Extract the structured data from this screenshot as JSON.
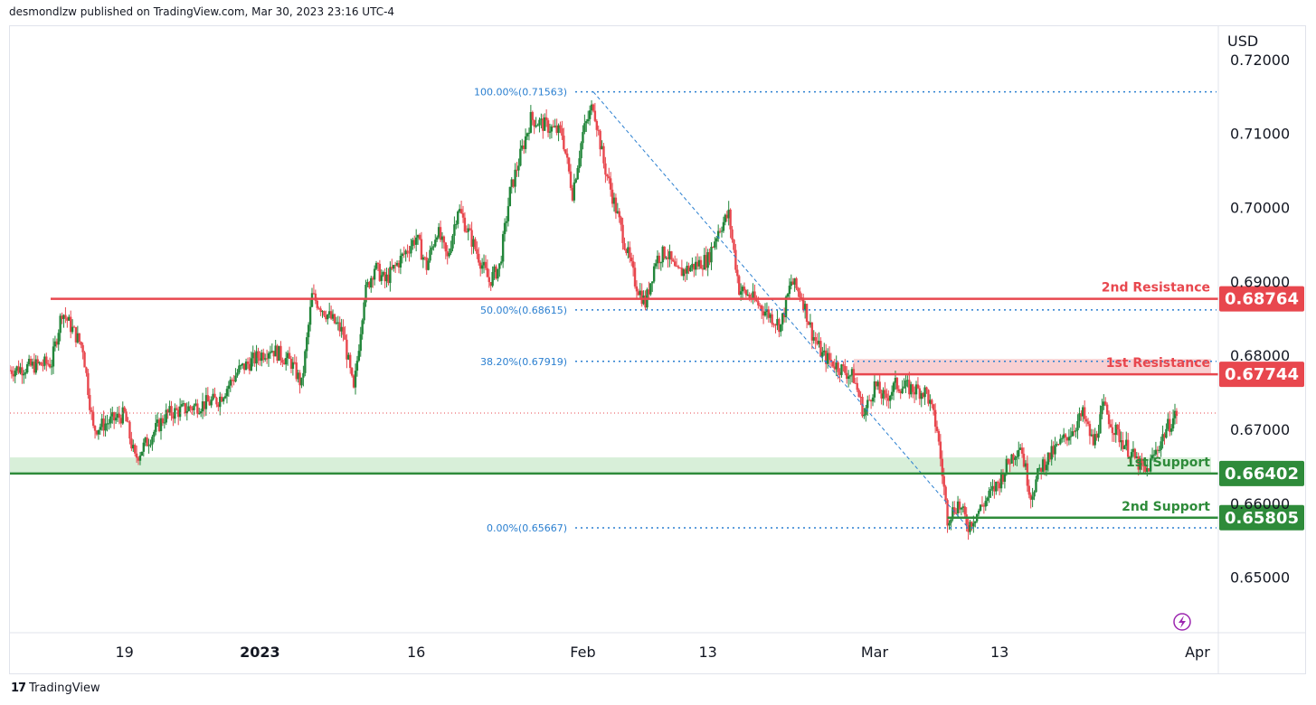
{
  "header": {
    "text": "desmondlzw published on TradingView.com, Mar 30, 2023 23:16 UTC-4"
  },
  "footer": {
    "logo": "17",
    "brand": "TradingView"
  },
  "colors": {
    "bull": "#22863a",
    "bear": "#e8474e",
    "resistance": "#e8474e",
    "support": "#2e8b3a",
    "fib": "#2a7fd0",
    "resistance_zone": "#f8d0d2",
    "support_zone": "#d8efd9",
    "last_price": "#e8474e"
  },
  "chart_data": {
    "type": "candlestick",
    "symbol_currency": "USD",
    "y_ticks": [
      0.72,
      0.71,
      0.7,
      0.69,
      0.68,
      0.67,
      0.66,
      0.65
    ],
    "y_tick_labels": [
      "0.72000",
      "0.71000",
      "0.70000",
      "0.69000",
      "0.68000",
      "0.67000",
      "0.66000",
      "0.65000"
    ],
    "ylim": [
      0.6425,
      0.7245
    ],
    "x_ticks": [
      {
        "label": "19",
        "date": "2022-12-19",
        "bold": false
      },
      {
        "label": "2023",
        "date": "2023-01-01",
        "bold": true
      },
      {
        "label": "16",
        "date": "2023-01-16",
        "bold": false
      },
      {
        "label": "Feb",
        "date": "2023-02-01",
        "bold": false
      },
      {
        "label": "13",
        "date": "2023-02-13",
        "bold": false
      },
      {
        "label": "Mar",
        "date": "2023-03-01",
        "bold": false
      },
      {
        "label": "13",
        "date": "2023-03-13",
        "bold": false
      },
      {
        "label": "Apr",
        "date": "2023-04-01",
        "bold": false
      }
    ],
    "xlim": [
      "2022-12-08",
      "2023-04-03"
    ],
    "levels": [
      {
        "name": "2nd Resistance",
        "value": 0.68764,
        "label": "0.68764",
        "kind": "resistance"
      },
      {
        "name": "1st Resistance",
        "value": 0.67744,
        "label": "0.67744",
        "kind": "resistance",
        "zone_top": 0.6795
      },
      {
        "name": "1st Support",
        "value": 0.66402,
        "label": "0.66402",
        "kind": "support",
        "zone_top": 0.6662
      },
      {
        "name": "2nd Support",
        "value": 0.65805,
        "label": "0.65805",
        "kind": "support"
      }
    ],
    "fibonacci": [
      {
        "label": "100.00%(0.71563)",
        "value": 0.71563
      },
      {
        "label": "50.00%(0.68615)",
        "value": 0.68615
      },
      {
        "label": "38.20%(0.67919)",
        "value": 0.67919
      },
      {
        "label": "0.00%(0.65667)",
        "value": 0.65667
      }
    ],
    "fib_swing": {
      "high_date": "2023-02-02",
      "high": 0.71563,
      "low_date": "2023-03-10",
      "low": 0.65667
    },
    "last_price": 0.6722,
    "close_path": [
      {
        "date": "2022-12-08",
        "close": 0.678
      },
      {
        "date": "2022-12-12",
        "close": 0.679
      },
      {
        "date": "2022-12-13",
        "close": 0.686
      },
      {
        "date": "2022-12-15",
        "close": 0.681
      },
      {
        "date": "2022-12-16",
        "close": 0.67
      },
      {
        "date": "2022-12-19",
        "close": 0.672
      },
      {
        "date": "2022-12-20",
        "close": 0.666
      },
      {
        "date": "2022-12-21",
        "close": 0.668
      },
      {
        "date": "2022-12-22",
        "close": 0.67
      },
      {
        "date": "2022-12-23",
        "close": 0.672
      },
      {
        "date": "2022-12-28",
        "close": 0.674
      },
      {
        "date": "2022-12-30",
        "close": 0.678
      },
      {
        "date": "2023-01-02",
        "close": 0.681
      },
      {
        "date": "2023-01-04",
        "close": 0.679
      },
      {
        "date": "2023-01-05",
        "close": 0.676
      },
      {
        "date": "2023-01-06",
        "close": 0.688
      },
      {
        "date": "2023-01-09",
        "close": 0.683
      },
      {
        "date": "2023-01-10",
        "close": 0.675
      },
      {
        "date": "2023-01-11",
        "close": 0.688
      },
      {
        "date": "2023-01-12",
        "close": 0.692
      },
      {
        "date": "2023-01-13",
        "close": 0.69
      },
      {
        "date": "2023-01-16",
        "close": 0.696
      },
      {
        "date": "2023-01-17",
        "close": 0.692
      },
      {
        "date": "2023-01-18",
        "close": 0.697
      },
      {
        "date": "2023-01-19",
        "close": 0.693
      },
      {
        "date": "2023-01-20",
        "close": 0.7
      },
      {
        "date": "2023-01-23",
        "close": 0.69
      },
      {
        "date": "2023-01-24",
        "close": 0.692
      },
      {
        "date": "2023-01-25",
        "close": 0.702
      },
      {
        "date": "2023-01-26",
        "close": 0.707
      },
      {
        "date": "2023-01-27",
        "close": 0.712
      },
      {
        "date": "2023-01-30",
        "close": 0.71
      },
      {
        "date": "2023-01-31",
        "close": 0.702
      },
      {
        "date": "2023-02-01",
        "close": 0.71
      },
      {
        "date": "2023-02-02",
        "close": 0.714
      },
      {
        "date": "2023-02-03",
        "close": 0.706
      },
      {
        "date": "2023-02-06",
        "close": 0.69
      },
      {
        "date": "2023-02-07",
        "close": 0.687
      },
      {
        "date": "2023-02-08",
        "close": 0.693
      },
      {
        "date": "2023-02-09",
        "close": 0.694
      },
      {
        "date": "2023-02-10",
        "close": 0.691
      },
      {
        "date": "2023-02-13",
        "close": 0.693
      },
      {
        "date": "2023-02-14",
        "close": 0.697
      },
      {
        "date": "2023-02-15",
        "close": 0.699
      },
      {
        "date": "2023-02-16",
        "close": 0.689
      },
      {
        "date": "2023-02-17",
        "close": 0.688
      },
      {
        "date": "2023-02-20",
        "close": 0.684
      },
      {
        "date": "2023-02-21",
        "close": 0.69
      },
      {
        "date": "2023-02-22",
        "close": 0.688
      },
      {
        "date": "2023-02-23",
        "close": 0.683
      },
      {
        "date": "2023-02-24",
        "close": 0.68
      },
      {
        "date": "2023-02-27",
        "close": 0.677
      },
      {
        "date": "2023-02-28",
        "close": 0.672
      },
      {
        "date": "2023-03-01",
        "close": 0.676
      },
      {
        "date": "2023-03-02",
        "close": 0.674
      },
      {
        "date": "2023-03-03",
        "close": 0.676
      },
      {
        "date": "2023-03-06",
        "close": 0.675
      },
      {
        "date": "2023-03-07",
        "close": 0.67
      },
      {
        "date": "2023-03-08",
        "close": 0.658
      },
      {
        "date": "2023-03-09",
        "close": 0.66
      },
      {
        "date": "2023-03-10",
        "close": 0.657
      },
      {
        "date": "2023-03-13",
        "close": 0.663
      },
      {
        "date": "2023-03-14",
        "close": 0.666
      },
      {
        "date": "2023-03-15",
        "close": 0.668
      },
      {
        "date": "2023-03-16",
        "close": 0.661
      },
      {
        "date": "2023-03-17",
        "close": 0.665
      },
      {
        "date": "2023-03-20",
        "close": 0.67
      },
      {
        "date": "2023-03-21",
        "close": 0.672
      },
      {
        "date": "2023-03-22",
        "close": 0.668
      },
      {
        "date": "2023-03-23",
        "close": 0.673
      },
      {
        "date": "2023-03-24",
        "close": 0.67
      },
      {
        "date": "2023-03-27",
        "close": 0.664
      },
      {
        "date": "2023-03-28",
        "close": 0.667
      },
      {
        "date": "2023-03-29",
        "close": 0.67
      },
      {
        "date": "2023-03-30",
        "close": 0.6722
      }
    ]
  }
}
